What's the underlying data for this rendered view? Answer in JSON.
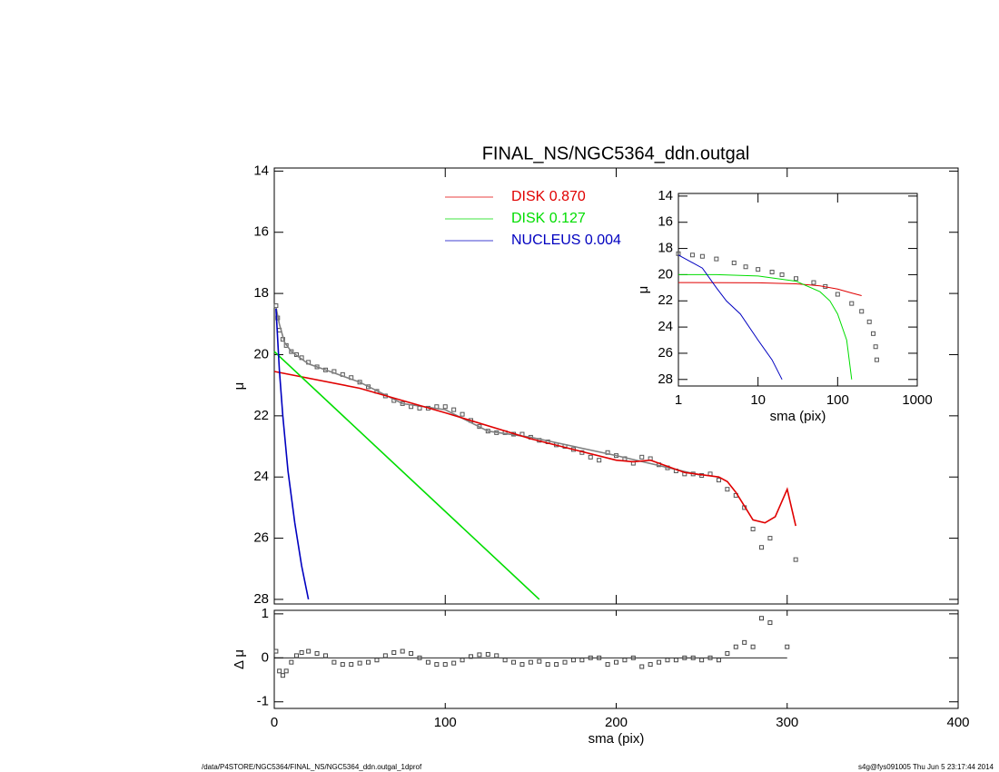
{
  "chart_data": [
    {
      "type": "line",
      "title": "FINAL_NS/NGC5364_ddn.outgal",
      "ylabel": "μ",
      "xlim": [
        0,
        400
      ],
      "ylim": [
        28.15,
        13.9
      ],
      "yticks": [
        14,
        16,
        18,
        20,
        22,
        24,
        26,
        28
      ],
      "legend": "upper center",
      "series": [
        {
          "marker": "square",
          "color": "#555555",
          "x": [
            1,
            2,
            3,
            5,
            7,
            10,
            13,
            16,
            20,
            25,
            30,
            35,
            40,
            45,
            50,
            55,
            60,
            65,
            70,
            75,
            80,
            85,
            90,
            95,
            100,
            105,
            110,
            115,
            120,
            125,
            130,
            135,
            140,
            145,
            150,
            155,
            160,
            165,
            170,
            175,
            180,
            185,
            190,
            195,
            200,
            205,
            210,
            215,
            220,
            225,
            230,
            235,
            240,
            245,
            250,
            255,
            260,
            265,
            270,
            275,
            280,
            285,
            290,
            305
          ],
          "values": [
            18.4,
            18.8,
            19.2,
            19.5,
            19.7,
            19.9,
            20.0,
            20.1,
            20.25,
            20.4,
            20.5,
            20.55,
            20.65,
            20.75,
            20.9,
            21.05,
            21.2,
            21.35,
            21.5,
            21.6,
            21.7,
            21.75,
            21.75,
            21.7,
            21.7,
            21.8,
            21.95,
            22.15,
            22.35,
            22.5,
            22.55,
            22.55,
            22.6,
            22.6,
            22.7,
            22.8,
            22.85,
            22.95,
            23.0,
            23.1,
            23.2,
            23.35,
            23.45,
            23.2,
            23.3,
            23.4,
            23.55,
            23.35,
            23.4,
            23.6,
            23.7,
            23.8,
            23.9,
            23.9,
            23.95,
            23.9,
            24.1,
            24.4,
            24.6,
            25.0,
            25.7,
            26.3,
            26.0,
            26.7
          ]
        },
        {
          "color": "#808080",
          "x": [
            1,
            3,
            6,
            10,
            20,
            30,
            50,
            75,
            100,
            125,
            150,
            200,
            250
          ],
          "values": [
            18.45,
            19.0,
            19.6,
            19.9,
            20.3,
            20.5,
            20.9,
            21.6,
            21.8,
            22.5,
            22.7,
            23.3,
            23.95
          ]
        },
        {
          "name": "DISK  0.870",
          "color": "#e00000",
          "x": [
            0,
            50,
            100,
            150,
            200,
            210,
            220,
            240,
            260,
            265,
            270,
            275,
            280,
            287,
            293,
            300,
            305
          ],
          "values": [
            20.55,
            21.1,
            21.9,
            22.75,
            23.45,
            23.5,
            23.45,
            23.85,
            24.0,
            24.15,
            24.5,
            24.95,
            25.4,
            25.5,
            25.3,
            24.4,
            25.6
          ]
        },
        {
          "name": "DISK  0.127",
          "color": "#00dd00",
          "x": [
            0,
            155
          ],
          "values": [
            19.9,
            28
          ]
        },
        {
          "name": "NUCLEUS  0.004",
          "color": "#0000c0",
          "x": [
            1,
            3,
            5,
            8,
            12,
            16,
            20
          ],
          "values": [
            18.5,
            20.5,
            22,
            23.8,
            25.5,
            26.9,
            28
          ]
        }
      ]
    },
    {
      "type": "scatter",
      "xlabel": "sma (pix)",
      "ylabel": "Δ μ",
      "xlim": [
        0,
        400
      ],
      "xticks": [
        0,
        100,
        200,
        300,
        400
      ],
      "ylim": [
        -1.15,
        1.08
      ],
      "yticks": [
        -1,
        0,
        1
      ],
      "series": [
        {
          "marker": "square",
          "color": "#444444",
          "x": [
            1,
            3,
            5,
            7,
            10,
            13,
            16,
            20,
            25,
            30,
            35,
            40,
            45,
            50,
            55,
            60,
            65,
            70,
            75,
            80,
            85,
            90,
            95,
            100,
            105,
            110,
            115,
            120,
            125,
            130,
            135,
            140,
            145,
            150,
            155,
            160,
            165,
            170,
            175,
            180,
            185,
            190,
            195,
            200,
            205,
            210,
            215,
            220,
            225,
            230,
            235,
            240,
            245,
            250,
            255,
            260,
            265,
            270,
            275,
            280,
            285,
            290,
            300
          ],
          "values": [
            0.15,
            -0.3,
            -0.4,
            -0.3,
            -0.1,
            0.05,
            0.12,
            0.15,
            0.1,
            0.05,
            -0.1,
            -0.15,
            -0.15,
            -0.12,
            -0.1,
            -0.05,
            0.05,
            0.12,
            0.15,
            0.1,
            0,
            -0.1,
            -0.15,
            -0.15,
            -0.12,
            -0.05,
            0.03,
            0.07,
            0.08,
            0.05,
            -0.05,
            -0.1,
            -0.15,
            -0.1,
            -0.08,
            -0.15,
            -0.15,
            -0.1,
            -0.05,
            -0.05,
            0,
            0,
            -0.15,
            -0.1,
            -0.05,
            0,
            -0.2,
            -0.15,
            -0.1,
            -0.05,
            -0.05,
            0,
            0,
            -0.05,
            0,
            -0.05,
            0.1,
            0.25,
            0.35,
            0.25,
            0.9,
            0.8,
            0.25
          ]
        }
      ]
    },
    {
      "type": "line",
      "xlabel": "sma (pix)",
      "ylabel": "μ",
      "xscale": "log",
      "xlim": [
        1,
        1000
      ],
      "xticks": [
        1,
        10,
        100,
        1000
      ],
      "ylim": [
        28.5,
        13.8
      ],
      "yticks": [
        14,
        16,
        18,
        20,
        22,
        24,
        26,
        28
      ],
      "series": [
        {
          "marker": "square",
          "color": "#555555",
          "x": [
            1,
            1.5,
            2,
            3,
            5,
            7,
            10,
            15,
            20,
            30,
            50,
            70,
            100,
            150,
            200,
            250,
            280,
            300,
            310
          ],
          "values": [
            18.4,
            18.5,
            18.6,
            18.8,
            19.1,
            19.4,
            19.6,
            19.8,
            20.0,
            20.3,
            20.6,
            20.9,
            21.5,
            22.2,
            22.8,
            23.6,
            24.5,
            25.5,
            26.5
          ]
        },
        {
          "color": "#e00000",
          "x": [
            1,
            10,
            30,
            60,
            100,
            150,
            200
          ],
          "values": [
            20.6,
            20.62,
            20.7,
            20.85,
            21.1,
            21.4,
            21.6
          ]
        },
        {
          "color": "#00dd00",
          "x": [
            1,
            3,
            10,
            30,
            60,
            80,
            100,
            130,
            150
          ],
          "values": [
            20.0,
            20.0,
            20.1,
            20.5,
            21.3,
            22.0,
            23.0,
            25.0,
            28.0
          ]
        },
        {
          "color": "#0000c0",
          "x": [
            1,
            2,
            3,
            4,
            6,
            10,
            15,
            20
          ],
          "values": [
            18.5,
            19.5,
            21.0,
            22.0,
            23.0,
            25.0,
            26.5,
            28.0
          ]
        }
      ]
    }
  ],
  "footer": {
    "left": "/data/P4STORE/NGC5364/FINAL_NS/NGC5364_ddn.outgal_1dprof",
    "right": "s4g@fys091005  Thu Jun  5 23:17:44 2014"
  }
}
